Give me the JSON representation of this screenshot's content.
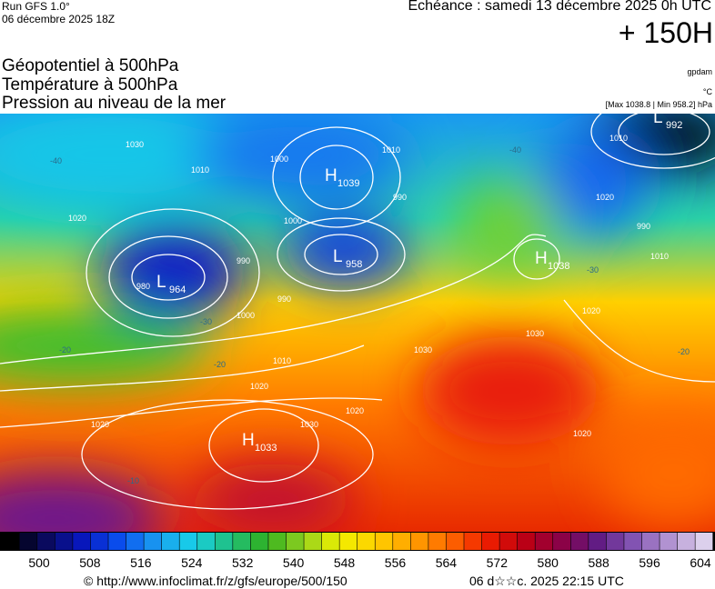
{
  "header": {
    "run": "Run GFS 1.0°",
    "run_date": "06 décembre 2025 18Z",
    "valid": "Echéance : samedi 13 décembre 2025 0h UTC",
    "lead": "+ 150H"
  },
  "layers": [
    "Géopotentiel à 500hPa",
    "Température à 500hPa",
    "Pression au niveau de la mer"
  ],
  "units": [
    "gpdam",
    "°C",
    "[Max 1038.8 | Min 958.2] hPa"
  ],
  "map": {
    "centers": [
      {
        "letter": "L",
        "value": "992"
      },
      {
        "letter": "H",
        "value": "1039"
      },
      {
        "letter": "L",
        "value": "958"
      },
      {
        "letter": "L",
        "value": "964"
      },
      {
        "letter": "H",
        "value": "1038"
      },
      {
        "letter": "H",
        "value": "1033"
      }
    ],
    "isobar_labels": [
      "1030",
      "1010",
      "1020",
      "1000",
      "990",
      "1010",
      "990",
      "1000",
      "980",
      "990",
      "1000",
      "1010",
      "1020",
      "1020",
      "1030",
      "1020",
      "1030",
      "1020",
      "1010",
      "1010",
      "1030",
      "1020",
      "1020",
      "990"
    ],
    "temp_labels": [
      "-40",
      "-30",
      "-20",
      "-20",
      "-10",
      "-40",
      "-30",
      "-20"
    ]
  },
  "colorbar": {
    "labels": [
      "500",
      "508",
      "516",
      "524",
      "532",
      "540",
      "548",
      "556",
      "564",
      "572",
      "580",
      "588",
      "596",
      "604"
    ]
  },
  "footer": {
    "url": "© http://www.infoclimat.fr/z/gfs/europe/500/150",
    "date": "06 d☆☆c. 2025 22:15 UTC"
  }
}
